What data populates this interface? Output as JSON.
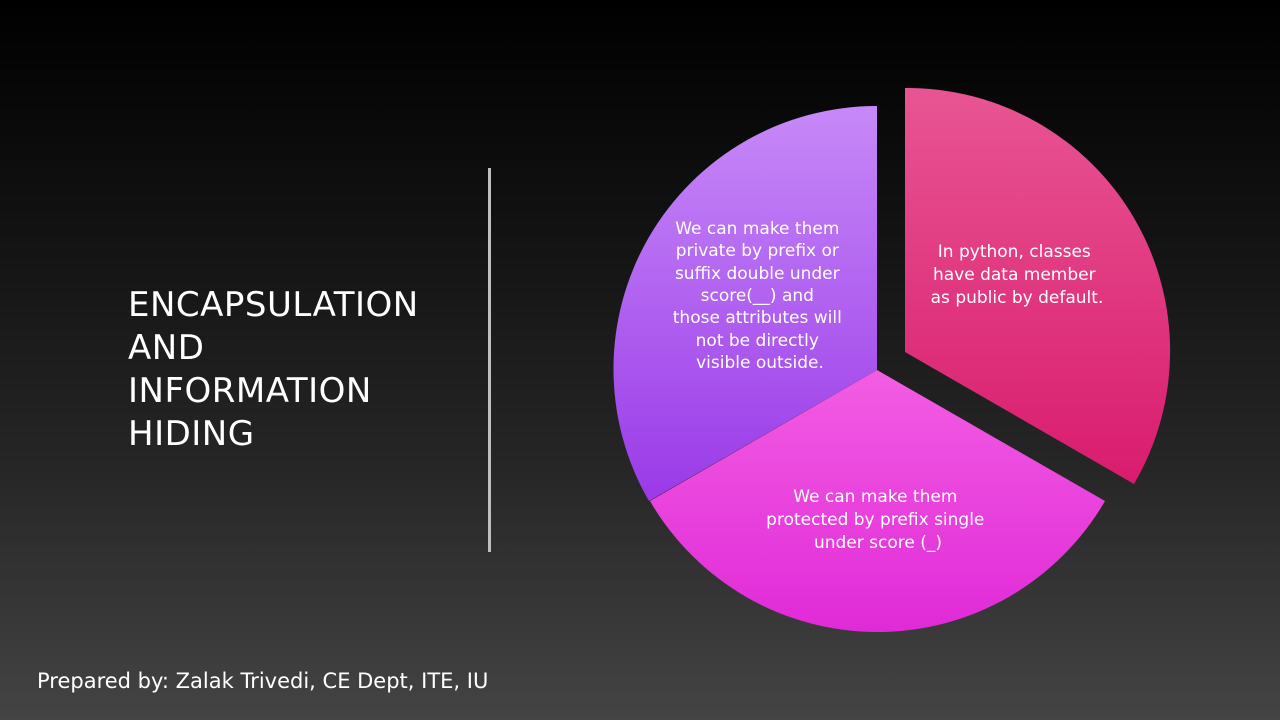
{
  "slide": {
    "title_lines": [
      "ENCAPSULATION",
      "AND",
      "INFORMATION",
      "HIDING"
    ],
    "footer": "Prepared by: Zalak Trivedi, CE Dept, ITE, IU"
  },
  "diagram": {
    "type": "cycle-pie",
    "segments": [
      {
        "lines": [
          "In python, classes",
          "have data member",
          "as public by default."
        ],
        "color_top": "#e85593",
        "color_bottom": "#d91c6e"
      },
      {
        "lines": [
          "We can make them",
          "protected by prefix single",
          "under score (_)"
        ],
        "color_top": "#f35de3",
        "color_bottom": "#e02ad8"
      },
      {
        "lines": [
          "We can make them",
          "private by prefix or",
          "suffix double under",
          "score(__) and",
          "those attributes will",
          "not be directly",
          "visible outside."
        ],
        "color_top": "#c789f8",
        "color_bottom": "#9a3ae8"
      }
    ]
  }
}
